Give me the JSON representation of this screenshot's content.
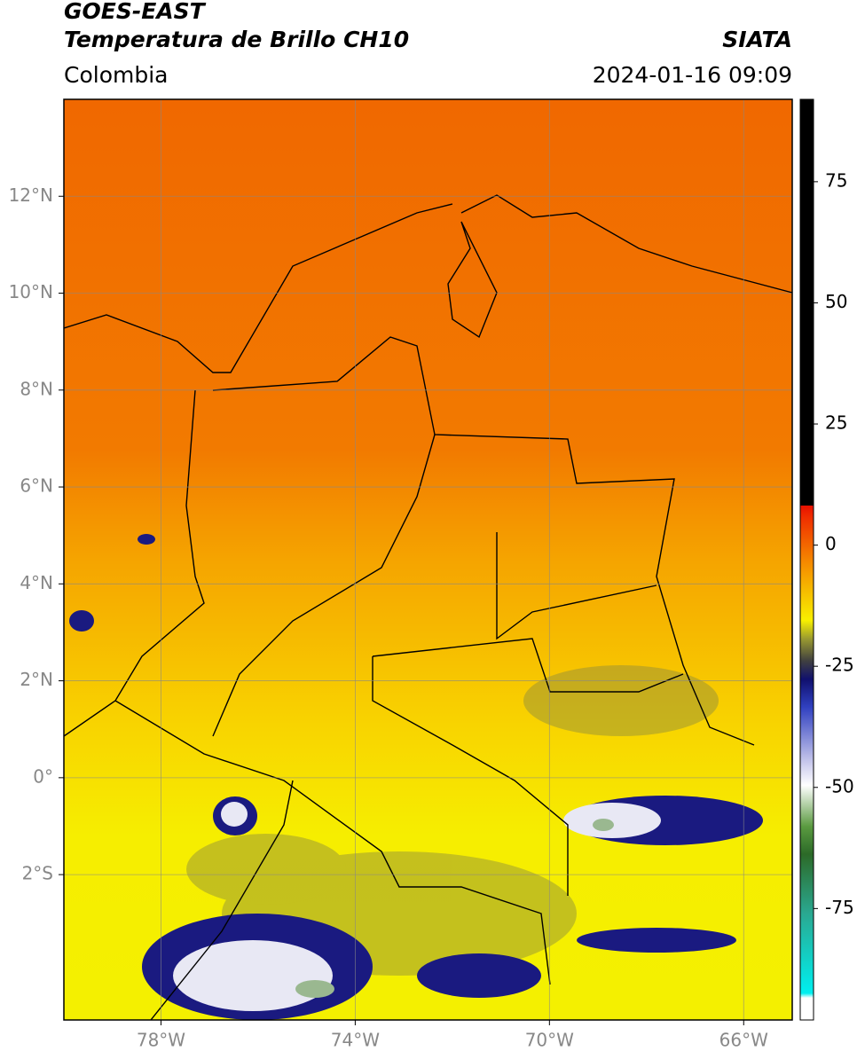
{
  "header": {
    "title": "GOES-EAST",
    "subtitle": "Temperatura de Brillo CH10",
    "source": "SIATA",
    "region": "Colombia",
    "datetime": "2024-01-16 09:09"
  },
  "map": {
    "xlim": [
      -80,
      -65
    ],
    "ylim": [
      -5,
      14
    ],
    "xticks": [
      {
        "value": -78,
        "label": "78°W"
      },
      {
        "value": -74,
        "label": "74°W"
      },
      {
        "value": -70,
        "label": "70°W"
      },
      {
        "value": -66,
        "label": "66°W"
      }
    ],
    "yticks": [
      {
        "value": 12,
        "label": "12°N"
      },
      {
        "value": 10,
        "label": "10°N"
      },
      {
        "value": 8,
        "label": "8°N"
      },
      {
        "value": 6,
        "label": "6°N"
      },
      {
        "value": 4,
        "label": "4°N"
      },
      {
        "value": 2,
        "label": "2°N"
      },
      {
        "value": 0,
        "label": "0°"
      },
      {
        "value": -2,
        "label": "2°S"
      }
    ],
    "grid": true
  },
  "colorbar": {
    "lim": [
      -98,
      92
    ],
    "ticks": [
      75,
      50,
      25,
      0,
      -25,
      -50,
      -75
    ]
  }
}
